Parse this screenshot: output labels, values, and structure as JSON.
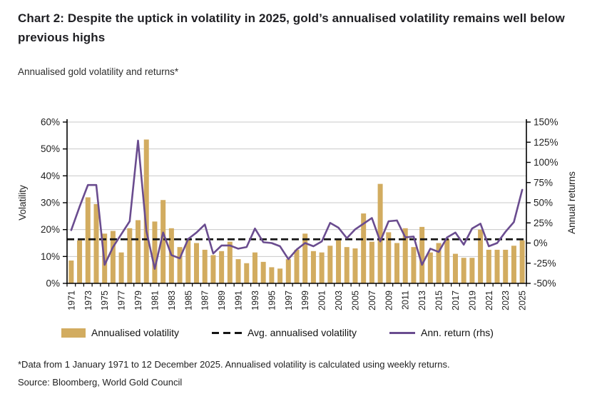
{
  "header": {
    "title": "Chart 2: Despite the uptick in volatility in 2025, gold’s annualised volatility remains well below previous highs",
    "subtitle": "Annualised gold volatility and returns*"
  },
  "legend": {
    "volatility_label": "Annualised volatility",
    "avg_label": "Avg. annualised volatility",
    "return_label": "Ann. return (rhs)"
  },
  "footer": {
    "note": "*Data from 1 January 1971 to 12 December 2025. Annualised volatility is calculated using weekly returns.",
    "source": "Source: Bloomberg, World Gold Council"
  },
  "colors": {
    "bar": "#D2AC60",
    "return_line": "#6A4C8F",
    "avg_line": "#141414",
    "grid": "#C9C9C9",
    "axis": "#000000",
    "tick_text": "#1f1f1f"
  },
  "chart_data": {
    "type": "bar",
    "subtype": "combo-bar-line",
    "title": "Annualised gold volatility and returns*",
    "grid": true,
    "legend_position": "bottom",
    "categories": [
      1971,
      1972,
      1973,
      1974,
      1975,
      1976,
      1977,
      1978,
      1979,
      1980,
      1981,
      1982,
      1983,
      1984,
      1985,
      1986,
      1987,
      1988,
      1989,
      1990,
      1991,
      1992,
      1993,
      1994,
      1995,
      1996,
      1997,
      1998,
      1999,
      2000,
      2001,
      2002,
      2003,
      2004,
      2005,
      2006,
      2007,
      2008,
      2009,
      2010,
      2011,
      2012,
      2013,
      2014,
      2015,
      2016,
      2017,
      2018,
      2019,
      2020,
      2021,
      2022,
      2023,
      2024,
      2025
    ],
    "x_tick_labels": [
      "1971",
      "1973",
      "1975",
      "1977",
      "1979",
      "1981",
      "1983",
      "1985",
      "1987",
      "1989",
      "1991",
      "1993",
      "1995",
      "1997",
      "1999",
      "2001",
      "2003",
      "2005",
      "2007",
      "2009",
      "2011",
      "2013",
      "2015",
      "2017",
      "2019",
      "2021",
      "2023",
      "2025"
    ],
    "series": [
      {
        "name": "Annualised volatility",
        "type": "bar",
        "axis": "left",
        "values": [
          8.5,
          16,
          32,
          29.5,
          18.5,
          19.5,
          11.5,
          20.5,
          23.5,
          53.5,
          23,
          31,
          20.5,
          13.5,
          16,
          15,
          12.5,
          10.5,
          12,
          15.5,
          9,
          7.5,
          11.5,
          8,
          6,
          5.5,
          9,
          12.5,
          18.5,
          12,
          11.5,
          14,
          16.5,
          13.5,
          13,
          26,
          15.5,
          37,
          19,
          15,
          20.5,
          13.5,
          21,
          11.5,
          15,
          16.5,
          11,
          9.5,
          9.5,
          20,
          12.5,
          12.5,
          12.5,
          14,
          16
        ]
      },
      {
        "name": "Ann. return (rhs)",
        "type": "line",
        "axis": "right",
        "values": [
          16,
          45,
          72,
          72,
          -27,
          -5,
          11,
          27,
          127,
          15,
          -32,
          13,
          -15,
          -19,
          5,
          13,
          23,
          -13,
          -3,
          -3,
          -7,
          -5,
          18,
          1,
          0,
          -4,
          -20,
          -8,
          0,
          -4,
          2,
          25,
          19,
          6,
          17,
          24,
          31,
          2,
          27,
          28,
          7,
          8,
          -27,
          -7,
          -11,
          7,
          13,
          -2,
          18,
          24,
          -4,
          0,
          14,
          26,
          66
        ]
      },
      {
        "name": "Avg. annualised volatility",
        "type": "hline",
        "axis": "left",
        "value": 16.4
      }
    ],
    "left_axis": {
      "label": "Volatility",
      "min": 0,
      "max": 60,
      "step": 10,
      "tick_labels": [
        "60%",
        "50%",
        "40%",
        "30%",
        "20%",
        "10%",
        "0%"
      ]
    },
    "right_axis": {
      "label": "Annual returns",
      "min": -50,
      "max": 150,
      "step": 25,
      "tick_labels": [
        "150%",
        "125%",
        "100%",
        "75%",
        "50%",
        "25%",
        "0%",
        "-25%",
        "-50%"
      ]
    }
  }
}
